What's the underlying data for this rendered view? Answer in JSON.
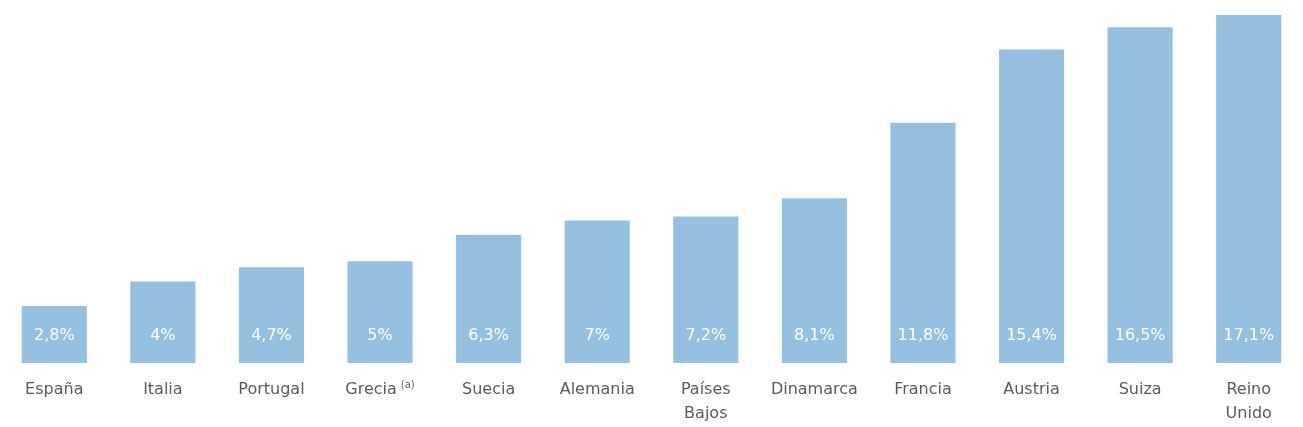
{
  "chart_data": {
    "type": "bar",
    "categories": [
      "España",
      "Italia",
      "Portugal",
      "Grecia $^{(a)}$",
      "Suecia",
      "Alemania",
      "Países Bajos",
      "Dinamarca",
      "Francia",
      "Austria",
      "Suiza",
      "Reino Unido"
    ],
    "values": [
      2.8,
      4,
      4.7,
      5,
      6.3,
      7,
      7.2,
      8.1,
      11.8,
      15.4,
      16.5,
      17.1
    ],
    "value_labels": [
      "2,8%",
      "4%",
      "4,7%",
      "5%",
      "6,3%",
      "7%",
      "7,2%",
      "8,1%",
      "11,8%",
      "15,4%",
      "16,5%",
      "17,1%"
    ],
    "color": "#95c0df",
    "grid": false,
    "legend": false
  }
}
